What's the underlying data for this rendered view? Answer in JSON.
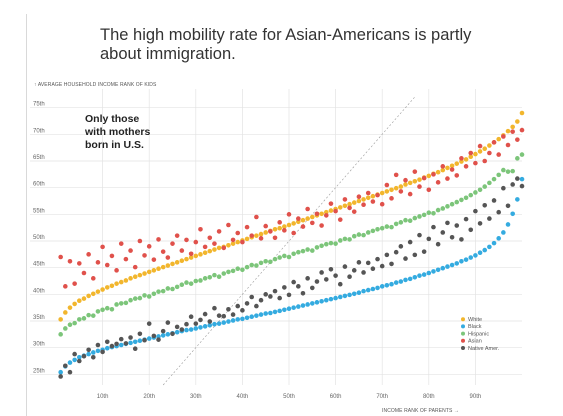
{
  "headline": "The high mobility rate for Asian-Americans is partly about immigration.",
  "chart_data": {
    "type": "scatter",
    "ylabel": "↑ AVERAGE HOUSEHOLD INCOME RANK OF KIDS",
    "xlabel": "INCOME RANK OF PARENTS →",
    "annotation": [
      "Only those",
      "with mothers",
      "born in U.S."
    ],
    "xlim": [
      0,
      100
    ],
    "ylim": [
      23,
      77
    ],
    "y_ticks": [
      25,
      30,
      35,
      40,
      45,
      50,
      55,
      60,
      65,
      70,
      75
    ],
    "y_tick_labels": [
      "25th",
      "30th",
      "35th",
      "40th",
      "45th",
      "50th",
      "55th",
      "60th",
      "65th",
      "70th",
      "75th"
    ],
    "x_ticks": [
      10,
      20,
      30,
      40,
      50,
      60,
      70,
      80,
      90
    ],
    "x_tick_labels": [
      "10th",
      "20th",
      "30th",
      "40th",
      "50th",
      "60th",
      "70th",
      "80th",
      "90th"
    ],
    "grid": true,
    "diagonal_reference": true,
    "legend_position": "bottom-right",
    "x_values": "percentiles 1 through 100 for every series",
    "series": [
      {
        "name": "White",
        "color": "#f2b62d",
        "values": [
          35.3,
          36.6,
          37.5,
          38.2,
          38.8,
          39.2,
          39.7,
          40.1,
          40.5,
          40.9,
          41.3,
          41.6,
          42,
          42.3,
          42.6,
          43,
          43.3,
          43.6,
          43.9,
          44.2,
          44.5,
          44.8,
          45.1,
          45.4,
          45.7,
          46,
          46.3,
          46.6,
          46.9,
          47.2,
          47.5,
          47.8,
          48.1,
          48.4,
          48.7,
          48.9,
          49.2,
          49.5,
          49.8,
          50.1,
          50.4,
          50.7,
          51,
          51.3,
          51.6,
          51.9,
          52.2,
          52.4,
          52.7,
          53,
          53.3,
          53.6,
          53.9,
          54.2,
          54.5,
          54.8,
          55.1,
          55.4,
          55.7,
          56,
          56.3,
          56.6,
          56.9,
          57.2,
          57.5,
          57.8,
          58.1,
          58.4,
          58.7,
          59,
          59.3,
          59.6,
          59.9,
          60.2,
          60.6,
          60.9,
          61.2,
          61.5,
          61.9,
          62.2,
          62.6,
          62.9,
          63.3,
          63.7,
          64.1,
          64.5,
          64.9,
          65.3,
          65.8,
          66.3,
          66.8,
          67.3,
          67.9,
          68.5,
          69.1,
          69.8,
          70.6,
          71.4,
          72.4,
          74
        ]
      },
      {
        "name": "Black",
        "color": "#34abe0",
        "values": [
          25.4,
          26.5,
          27.2,
          27.7,
          28.2,
          28.5,
          28.8,
          29.1,
          29.4,
          29.6,
          29.9,
          30.1,
          30.3,
          30.5,
          30.7,
          30.9,
          31.1,
          31.3,
          31.5,
          31.7,
          31.9,
          32.1,
          32.3,
          32.5,
          32.7,
          32.9,
          33.1,
          33.3,
          33.4,
          33.6,
          33.8,
          34,
          34.2,
          34.4,
          34.5,
          34.7,
          34.9,
          35.1,
          35.3,
          35.4,
          35.6,
          35.8,
          36,
          36.2,
          36.4,
          36.5,
          36.7,
          36.9,
          37.1,
          37.3,
          37.5,
          37.7,
          37.9,
          38.1,
          38.3,
          38.5,
          38.7,
          38.9,
          39.1,
          39.3,
          39.5,
          39.7,
          39.9,
          40.1,
          40.3,
          40.6,
          40.8,
          41,
          41.2,
          41.5,
          41.7,
          41.9,
          42.2,
          42.4,
          42.7,
          42.9,
          43.2,
          43.5,
          43.7,
          44,
          44.3,
          44.6,
          44.9,
          45.2,
          45.5,
          45.8,
          46.2,
          46.5,
          46.9,
          47.3,
          47.8,
          48.3,
          48.9,
          49.6,
          50.5,
          51.6,
          53.1,
          55.1,
          57.8,
          61.6
        ]
      },
      {
        "name": "Hispanic",
        "color": "#7cc57a",
        "values": [
          32.5,
          33.6,
          34.3,
          34.6,
          35.3,
          35.5,
          36.1,
          36,
          36.8,
          37.1,
          37.4,
          37.2,
          38.1,
          38.3,
          38.4,
          38.9,
          39.2,
          39.3,
          39.8,
          39.6,
          40.1,
          40.5,
          40.6,
          41.1,
          41,
          41.4,
          41.8,
          42.2,
          42,
          42.5,
          42.6,
          43,
          43.2,
          43.6,
          43.3,
          43.9,
          44.2,
          44.4,
          44.8,
          44.6,
          45.1,
          45.5,
          45.4,
          45.9,
          46.2,
          46.1,
          46.6,
          46.9,
          47.2,
          47,
          47.6,
          47.9,
          48.1,
          48.4,
          48.2,
          48.8,
          49.1,
          49.4,
          49.6,
          49.5,
          50.1,
          50.4,
          50.3,
          50.9,
          51.2,
          51.1,
          51.6,
          51.9,
          52.2,
          52.4,
          52.7,
          52.6,
          53.2,
          53.5,
          53.9,
          53.8,
          54.3,
          54.6,
          54.9,
          55.3,
          55.2,
          55.8,
          56.1,
          56.5,
          56.9,
          57.3,
          57.7,
          58.1,
          58.6,
          59.1,
          59.6,
          60.2,
          60.9,
          61.6,
          62.4,
          63.3,
          63,
          63.1,
          65.5,
          66.2
        ]
      },
      {
        "name": "Asian",
        "color": "#e0514b",
        "values": [
          47,
          41.5,
          46.2,
          42,
          45.8,
          44,
          47.5,
          43,
          46,
          48.9,
          45.5,
          47.2,
          44.5,
          49.5,
          46.6,
          48.2,
          45.1,
          50,
          47.3,
          49,
          46.5,
          50.3,
          48,
          46.9,
          49.5,
          51,
          48.2,
          50.2,
          47.6,
          49.8,
          52.2,
          48.9,
          50.6,
          49.5,
          51.8,
          48.7,
          53,
          50.2,
          51.5,
          49.8,
          52.6,
          51,
          54.5,
          50.5,
          52.8,
          51.8,
          50.6,
          53.5,
          52,
          55,
          51.5,
          54.2,
          52.7,
          56,
          53.4,
          55.1,
          52.9,
          54.8,
          57,
          55.6,
          54,
          57.8,
          56.2,
          55.5,
          58.3,
          56.8,
          59,
          57.4,
          58.6,
          56.9,
          60.5,
          58,
          62.4,
          59.3,
          61.4,
          58.8,
          63,
          60.2,
          61.8,
          59.6,
          62.5,
          61,
          64,
          61.7,
          63.4,
          62.3,
          65.5,
          64,
          66.5,
          64.6,
          67.8,
          65,
          66.5,
          68.5,
          66.2,
          69.6,
          68,
          70.5,
          69,
          70.8
        ]
      },
      {
        "name": "Native Amer.",
        "color": "#555555",
        "values": [
          24.6,
          26.6,
          25.4,
          28.8,
          27.5,
          28.4,
          29.6,
          28.2,
          30.5,
          29.2,
          31.1,
          30.3,
          30.7,
          31.6,
          30.8,
          31.9,
          29.8,
          32.6,
          31.4,
          34.5,
          32.2,
          31.5,
          33.1,
          34.7,
          32.6,
          33.9,
          33.4,
          34.4,
          35.8,
          34.5,
          35.2,
          36.3,
          34.9,
          37.4,
          36,
          35.9,
          37.2,
          36.2,
          37.8,
          37,
          38.3,
          39.5,
          37.8,
          38.9,
          40,
          39.6,
          40.6,
          39.3,
          41.3,
          39.9,
          42.3,
          41.5,
          40.2,
          43,
          41.2,
          42.4,
          44.1,
          42.8,
          44.7,
          43.5,
          41.9,
          45.2,
          43.3,
          44.5,
          46,
          44.1,
          45.9,
          44.8,
          46.6,
          45.3,
          47.4,
          45.7,
          47.9,
          49,
          46.7,
          49.8,
          47.4,
          51.1,
          48,
          50.4,
          52.6,
          49.4,
          51.6,
          53.4,
          50.7,
          52.9,
          50.3,
          54.1,
          52.1,
          55.6,
          53.3,
          56.7,
          54.2,
          57.6,
          55.4,
          59.9,
          56.6,
          60.6,
          61.7,
          60.3
        ]
      }
    ]
  }
}
